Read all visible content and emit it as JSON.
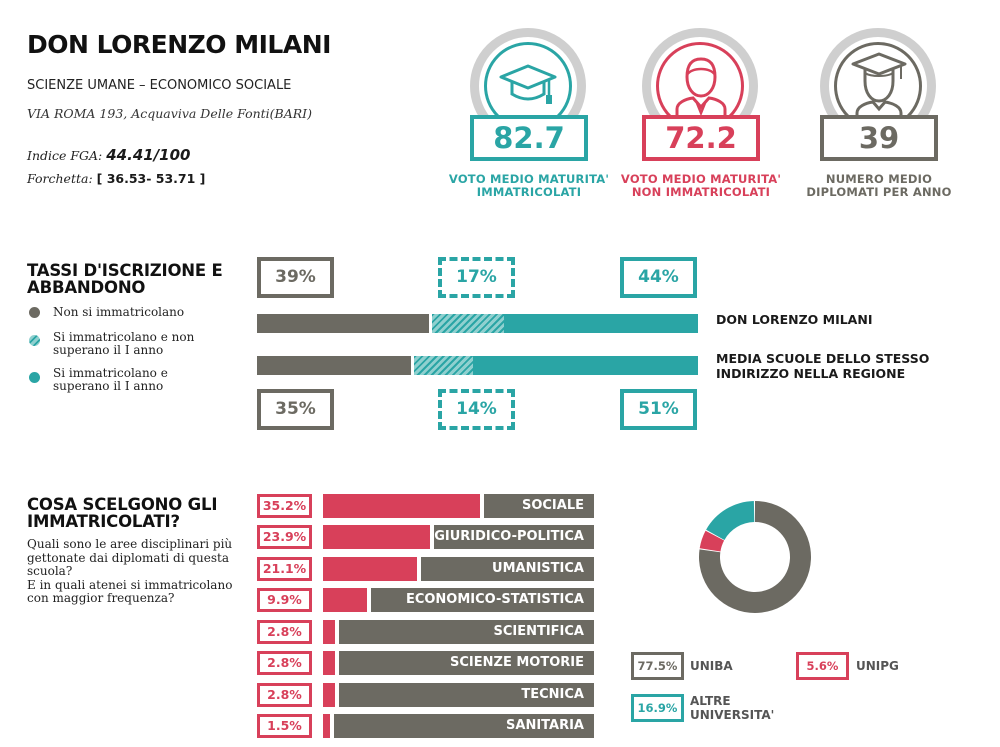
{
  "header": {
    "school_name": "DON LORENZO MILANI",
    "school_type": "SCIENZE UMANE – ECONOMICO SOCIALE",
    "address": "VIA ROMA 193, Acquaviva Delle Fonti(BARI)",
    "fga_label": "Indice FGA:",
    "fga_value": "44.41/100",
    "forchetta_label": "Forchetta:",
    "forchetta_value": "[ 36.53- 53.71 ]"
  },
  "metrics": [
    {
      "value": "82.7",
      "caption_line1": "VOTO MEDIO MATURITA'",
      "caption_line2": "IMMATRICOLATI",
      "color": "#2aa5a5",
      "icon": "graduation-cap-icon"
    },
    {
      "value": "72.2",
      "caption_line1": "VOTO MEDIO MATURITA'",
      "caption_line2": "NON IMMATRICOLATI",
      "color": "#d8405a",
      "icon": "person-icon"
    },
    {
      "value": "39",
      "caption_line1": "NUMERO MEDIO",
      "caption_line2": "DIPLOMATI PER ANNO",
      "color": "#6c6a62",
      "icon": "graduate-person-icon"
    }
  ],
  "tassi": {
    "title_line1": "TASSI D'ISCRIZIONE E",
    "title_line2": "ABBANDONO",
    "legend": [
      {
        "line1": "Non si immatricolano",
        "line2": "",
        "color": "#6c6a62",
        "style": "solid"
      },
      {
        "line1": "Si immatricolano e non",
        "line2": "superano il I anno",
        "color": "#2aa5a5",
        "style": "hatched"
      },
      {
        "line1": "Si immatricolano e",
        "line2": "superano il I anno",
        "color": "#2aa5a5",
        "style": "solid"
      }
    ],
    "school": {
      "label": "DON LORENZO MILANI",
      "non": "39%",
      "drop": "17%",
      "pass": "44%",
      "non_val": 39,
      "drop_val": 17,
      "pass_val": 44
    },
    "region": {
      "label_line1": "MEDIA SCUOLE DELLO STESSO",
      "label_line2": "INDIRIZZO NELLA REGIONE",
      "non": "35%",
      "drop": "14%",
      "pass": "51%",
      "non_val": 35,
      "drop_val": 14,
      "pass_val": 51
    }
  },
  "scelte": {
    "title_line1": "COSA SCELGONO GLI",
    "title_line2": "IMMATRICOLATI?",
    "desc_lines": [
      "Quali sono le aree disciplinari più",
      "gettonate dai diplomati di questa",
      "scuola?",
      "E in quali atenei si immatricolano",
      "con maggior frequenza?"
    ],
    "subjects": [
      {
        "pct": "35.2%",
        "value": 35.2,
        "name": "SOCIALE"
      },
      {
        "pct": "23.9%",
        "value": 23.9,
        "name": "GIURIDICO-POLITICA"
      },
      {
        "pct": "21.1%",
        "value": 21.1,
        "name": "UMANISTICA"
      },
      {
        "pct": "9.9%",
        "value": 9.9,
        "name": "ECONOMICO-STATISTICA"
      },
      {
        "pct": "2.8%",
        "value": 2.8,
        "name": "SCIENTIFICA"
      },
      {
        "pct": "2.8%",
        "value": 2.8,
        "name": "SCIENZE MOTORIE"
      },
      {
        "pct": "2.8%",
        "value": 2.8,
        "name": "TECNICA"
      },
      {
        "pct": "1.5%",
        "value": 1.5,
        "name": "SANITARIA"
      }
    ]
  },
  "universities": [
    {
      "pct": "77.5%",
      "value": 77.5,
      "name_line1": "UNIBA",
      "name_line2": "",
      "color": "#6c6a62"
    },
    {
      "pct": "5.6%",
      "value": 5.6,
      "name_line1": "UNIPG",
      "name_line2": "",
      "color": "#d8405a"
    },
    {
      "pct": "16.9%",
      "value": 16.9,
      "name_line1": "ALTRE",
      "name_line2": "UNIVERSITA'",
      "color": "#2aa5a5"
    }
  ]
}
